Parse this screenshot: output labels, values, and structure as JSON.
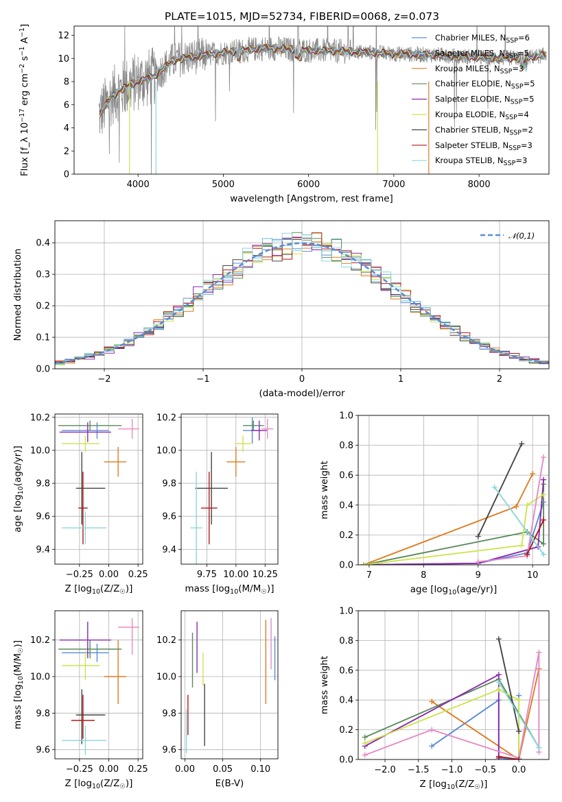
{
  "figure": {
    "title": "PLATE=1015, MJD=52734, FIBERID=0068, z=0.073"
  },
  "chart_data": [
    {
      "id": "spectrum",
      "type": "line",
      "xlabel": "wavelength [Angstrom, rest frame]",
      "ylabel": "Flux [f_λ 10^-17 erg cm^-2 s^-1 A^-1]",
      "xlim": [
        3250,
        8820
      ],
      "ylim": [
        0,
        12.8
      ],
      "xticks": [
        4000,
        5000,
        6000,
        7000,
        8000
      ],
      "yticks": [
        0,
        2,
        4,
        6,
        8,
        10,
        12
      ],
      "grid": false,
      "legend_position": "right",
      "series": [
        {
          "name": "Chabrier MILES, N_SSP=6",
          "color": "#5b8bd6"
        },
        {
          "name": "Salpeter MILES, N_SSP=5",
          "color": "#6ab8cf"
        },
        {
          "name": "Kroupa MILES, N_SSP=3",
          "color": "#e07b20"
        },
        {
          "name": "Chabrier ELODIE, N_SSP=5",
          "color": "#5a8a5a"
        },
        {
          "name": "Salpeter ELODIE, N_SSP=5",
          "color": "#8b2ab0"
        },
        {
          "name": "Kroupa ELODIE, N_SSP=4",
          "color": "#cde34d"
        },
        {
          "name": "Chabrier STELIB, N_SSP=2",
          "color": "#444444"
        },
        {
          "name": "Salpeter STELIB, N_SSP=3",
          "color": "#b01818"
        },
        {
          "name": "Kroupa STELIB, N_SSP=3",
          "color": "#8ad6dc"
        }
      ],
      "continuum_points": [
        [
          3550,
          5.2
        ],
        [
          3700,
          6.8
        ],
        [
          3900,
          7.7
        ],
        [
          4000,
          8.0
        ],
        [
          4200,
          8.5
        ],
        [
          4400,
          9.8
        ],
        [
          4600,
          10.1
        ],
        [
          5000,
          10.5
        ],
        [
          5500,
          10.9
        ],
        [
          6000,
          10.7
        ],
        [
          6500,
          10.6
        ],
        [
          7000,
          10.4
        ],
        [
          7500,
          10.3
        ],
        [
          8000,
          10.1
        ],
        [
          8500,
          10.0
        ],
        [
          8780,
          10.3
        ]
      ]
    },
    {
      "id": "residual-histogram",
      "type": "histogram",
      "xlabel": "(data-model)/error",
      "ylabel": "Normed distribution",
      "xlim": [
        -2.5,
        2.5
      ],
      "ylim": [
        0,
        0.47
      ],
      "xticks": [
        -2,
        -1,
        0,
        1,
        2
      ],
      "yticks": [
        0.0,
        0.1,
        0.2,
        0.3,
        0.4
      ],
      "grid": true,
      "legend_position": "top-right",
      "reference_curve": {
        "name": "𝒩(0,1)",
        "mean": 0,
        "sigma": 1,
        "color": "#5b8bd6",
        "style": "dashed"
      }
    },
    {
      "id": "age-vs-Z",
      "type": "errorbar",
      "xlabel": "Z [log10(Z/Z☉)]",
      "ylabel": "age  [log10(age/yr)]",
      "xlim": [
        -0.46,
        0.29
      ],
      "ylim": [
        9.31,
        10.22
      ],
      "xticks": [
        -0.5,
        -0.25,
        0.0,
        0.25
      ],
      "yticks": [
        9.4,
        9.6,
        9.8,
        10.0,
        10.2
      ],
      "grid": true,
      "points": [
        {
          "color": "#5b8bd6",
          "x": -0.1,
          "y": 10.12,
          "xerr": [
            0.3,
            0.1
          ],
          "yerr": [
            0.05,
            0.05
          ]
        },
        {
          "color": "#e07b20",
          "x": 0.08,
          "y": 9.93,
          "xerr": [
            0.12,
            0.07
          ],
          "yerr": [
            0.09,
            0.09
          ]
        },
        {
          "color": "#5a8a5a",
          "x": -0.16,
          "y": 10.15,
          "xerr": [
            0.27,
            0.27
          ],
          "yerr": [
            0.03,
            0.03
          ]
        },
        {
          "color": "#8b2ab0",
          "x": -0.18,
          "y": 10.11,
          "xerr": [
            0.24,
            0.2
          ],
          "yerr": [
            0.06,
            0.06
          ]
        },
        {
          "color": "#cde34d",
          "x": -0.2,
          "y": 10.04,
          "xerr": [
            0.2,
            0.12
          ],
          "yerr": [
            0.05,
            0.05
          ]
        },
        {
          "color": "#e58ac2",
          "x": 0.2,
          "y": 10.13,
          "xerr": [
            0.12,
            0.06
          ],
          "yerr": [
            0.06,
            0.06
          ]
        },
        {
          "color": "#444444",
          "x": -0.23,
          "y": 9.77,
          "xerr": [
            0.05,
            0.2
          ],
          "yerr": [
            0.22,
            0.22
          ]
        },
        {
          "color": "#b01818",
          "x": -0.22,
          "y": 9.65,
          "xerr": [
            0.04,
            0.04
          ],
          "yerr": [
            0.22,
            0.22
          ]
        },
        {
          "color": "#8ad6dc",
          "x": -0.2,
          "y": 9.53,
          "xerr": [
            0.2,
            0.18
          ],
          "yerr": [
            0.1,
            0.1
          ]
        }
      ]
    },
    {
      "id": "age-vs-mass",
      "type": "errorbar",
      "xlabel": "mass [log10(M/M☉)]",
      "ylabel": "",
      "xlim": [
        9.53,
        10.36
      ],
      "ylim": [
        9.31,
        10.22
      ],
      "xticks": [
        9.75,
        10.0,
        10.25
      ],
      "yticks": [
        9.4,
        9.6,
        9.8,
        10.0,
        10.2
      ],
      "grid": true,
      "points": [
        {
          "color": "#5b8bd6",
          "x": 10.14,
          "y": 10.12,
          "xerr": [
            0.08,
            0.08
          ],
          "yerr": [
            0.08,
            0.08
          ]
        },
        {
          "color": "#e07b20",
          "x": 10.0,
          "y": 9.93,
          "xerr": [
            0.08,
            0.08
          ],
          "yerr": [
            0.09,
            0.09
          ]
        },
        {
          "color": "#5a8a5a",
          "x": 10.15,
          "y": 10.15,
          "xerr": [
            0.09,
            0.09
          ],
          "yerr": [
            0.03,
            0.03
          ]
        },
        {
          "color": "#8b2ab0",
          "x": 10.2,
          "y": 10.12,
          "xerr": [
            0.07,
            0.07
          ],
          "yerr": [
            0.06,
            0.06
          ]
        },
        {
          "color": "#cde34d",
          "x": 10.06,
          "y": 10.04,
          "xerr": [
            0.07,
            0.07
          ],
          "yerr": [
            0.05,
            0.05
          ]
        },
        {
          "color": "#e58ac2",
          "x": 10.27,
          "y": 10.13,
          "xerr": [
            0.05,
            0.05
          ],
          "yerr": [
            0.06,
            0.06
          ]
        },
        {
          "color": "#444444",
          "x": 9.79,
          "y": 9.77,
          "xerr": [
            0.14,
            0.14
          ],
          "yerr": [
            0.22,
            0.22
          ]
        },
        {
          "color": "#b01818",
          "x": 9.77,
          "y": 9.65,
          "xerr": [
            0.07,
            0.07
          ],
          "yerr": [
            0.22,
            0.22
          ]
        },
        {
          "color": "#8ad6dc",
          "x": 9.66,
          "y": 9.53,
          "xerr": [
            0.05,
            0.05
          ],
          "yerr": [
            0.34,
            0.34
          ]
        }
      ]
    },
    {
      "id": "weight-vs-age",
      "type": "line",
      "xlabel": "age  [log10(age/yr)]",
      "ylabel": "mass weight",
      "xlim": [
        6.8,
        10.3
      ],
      "ylim": [
        0.0,
        1.0
      ],
      "xticks": [
        7,
        8,
        9,
        10
      ],
      "yticks": [
        0.0,
        0.2,
        0.4,
        0.6,
        0.8,
        1.0
      ],
      "grid": true,
      "series": [
        {
          "color": "#5b8bd6",
          "x": [
            6.9,
            9.0,
            9.9,
            10.2
          ],
          "y": [
            0.0,
            0.01,
            0.08,
            0.42
          ]
        },
        {
          "color": "#e07b20",
          "x": [
            6.9,
            9.7,
            10.0
          ],
          "y": [
            0.0,
            0.39,
            0.61
          ]
        },
        {
          "color": "#5a8a5a",
          "x": [
            6.9,
            9.9,
            10.2,
            10.2
          ],
          "y": [
            0.0,
            0.22,
            0.14,
            0.54
          ]
        },
        {
          "color": "#8b2ab0",
          "x": [
            6.9,
            9.0,
            10.1,
            10.2
          ],
          "y": [
            0.0,
            0.01,
            0.12,
            0.57
          ]
        },
        {
          "color": "#cde34d",
          "x": [
            6.9,
            9.8,
            9.9,
            10.2
          ],
          "y": [
            0.0,
            0.13,
            0.4,
            0.47
          ]
        },
        {
          "color": "#e58ac2",
          "x": [
            9.0,
            9.9,
            10.2
          ],
          "y": [
            0.02,
            0.06,
            0.72
          ]
        },
        {
          "color": "#444444",
          "x": [
            9.0,
            9.8
          ],
          "y": [
            0.19,
            0.81
          ]
        },
        {
          "color": "#b01818",
          "x": [
            9.9,
            10.2
          ],
          "y": [
            0.07,
            0.3
          ]
        },
        {
          "color": "#8ad6dc",
          "x": [
            9.3,
            10.2
          ],
          "y": [
            0.52,
            0.07
          ]
        }
      ]
    },
    {
      "id": "mass-vs-Z",
      "type": "errorbar",
      "xlabel": "Z [log10(Z/Z☉)]",
      "ylabel": "mass [log10(M/M☉)]",
      "xlim": [
        -0.46,
        0.29
      ],
      "ylim": [
        9.55,
        10.36
      ],
      "xticks": [
        -0.5,
        -0.25,
        0.0,
        0.25
      ],
      "yticks": [
        9.6,
        9.8,
        10.0,
        10.2
      ],
      "grid": true,
      "points": [
        {
          "color": "#5b8bd6",
          "x": -0.1,
          "y": 10.13,
          "xerr": [
            0.3,
            0.1
          ],
          "yerr": [
            0.05,
            0.05
          ]
        },
        {
          "color": "#e07b20",
          "x": 0.08,
          "y": 10.0,
          "xerr": [
            0.12,
            0.07
          ],
          "yerr": [
            0.15,
            0.2
          ]
        },
        {
          "color": "#5a8a5a",
          "x": -0.16,
          "y": 10.15,
          "xerr": [
            0.27,
            0.27
          ],
          "yerr": [
            0.05,
            0.05
          ]
        },
        {
          "color": "#8b2ab0",
          "x": -0.18,
          "y": 10.2,
          "xerr": [
            0.24,
            0.2
          ],
          "yerr": [
            0.1,
            0.1
          ]
        },
        {
          "color": "#cde34d",
          "x": -0.2,
          "y": 10.06,
          "xerr": [
            0.2,
            0.12
          ],
          "yerr": [
            0.08,
            0.08
          ]
        },
        {
          "color": "#e58ac2",
          "x": 0.2,
          "y": 10.27,
          "xerr": [
            0.12,
            0.06
          ],
          "yerr": [
            0.15,
            0.05
          ]
        },
        {
          "color": "#444444",
          "x": -0.23,
          "y": 9.79,
          "xerr": [
            0.05,
            0.2
          ],
          "yerr": [
            0.16,
            0.14
          ]
        },
        {
          "color": "#b01818",
          "x": -0.22,
          "y": 9.76,
          "xerr": [
            0.1,
            0.1
          ],
          "yerr": [
            0.1,
            0.14
          ]
        },
        {
          "color": "#8ad6dc",
          "x": -0.2,
          "y": 9.65,
          "xerr": [
            0.2,
            0.18
          ],
          "yerr": [
            0.08,
            0.08
          ]
        }
      ]
    },
    {
      "id": "mass-vs-EBV",
      "type": "errorbar",
      "xlabel": "E(B-V)",
      "ylabel": "",
      "xlim": [
        -0.005,
        0.123
      ],
      "ylim": [
        9.55,
        10.36
      ],
      "xticks": [
        0.0,
        0.05,
        0.1
      ],
      "yticks": [
        9.6,
        9.8,
        10.0,
        10.2
      ],
      "grid": true,
      "points": [
        {
          "color": "#5b8bd6",
          "x": 0.119,
          "y": 10.1,
          "xerr": [
            0,
            0
          ],
          "yerr": [
            0.12,
            0.12
          ]
        },
        {
          "color": "#e07b20",
          "x": 0.107,
          "y": 10.08,
          "xerr": [
            0,
            0
          ],
          "yerr": [
            0.23,
            0.23
          ]
        },
        {
          "color": "#5a8a5a",
          "x": 0.01,
          "y": 10.09,
          "xerr": [
            0,
            0
          ],
          "yerr": [
            0.15,
            0.15
          ]
        },
        {
          "color": "#8b2ab0",
          "x": 0.016,
          "y": 10.16,
          "xerr": [
            0,
            0
          ],
          "yerr": [
            0.14,
            0.14
          ]
        },
        {
          "color": "#cde34d",
          "x": 0.024,
          "y": 10.04,
          "xerr": [
            0,
            0
          ],
          "yerr": [
            0.09,
            0.09
          ]
        },
        {
          "color": "#e58ac2",
          "x": 0.114,
          "y": 10.18,
          "xerr": [
            0,
            0
          ],
          "yerr": [
            0.14,
            0.14
          ]
        },
        {
          "color": "#444444",
          "x": 0.026,
          "y": 9.79,
          "xerr": [
            0,
            0
          ],
          "yerr": [
            0.17,
            0.17
          ]
        },
        {
          "color": "#b01818",
          "x": 0.004,
          "y": 9.79,
          "xerr": [
            0,
            0
          ],
          "yerr": [
            0.11,
            0.11
          ]
        },
        {
          "color": "#8ad6dc",
          "x": 0.002,
          "y": 9.7,
          "xerr": [
            0,
            0
          ],
          "yerr": [
            0.12,
            0.12
          ]
        }
      ]
    },
    {
      "id": "weight-vs-Z",
      "type": "line",
      "xlabel": "Z [log10(Z/Z☉)]",
      "ylabel": "mass weight",
      "xlim": [
        -2.4,
        0.45
      ],
      "ylim": [
        0.0,
        1.0
      ],
      "xticks": [
        -2.0,
        -1.5,
        -1.0,
        -0.5,
        0.0
      ],
      "yticks": [
        0.0,
        0.2,
        0.4,
        0.6,
        0.8,
        1.0
      ],
      "grid": true,
      "series": [
        {
          "color": "#5b8bd6",
          "x": [
            -1.3,
            -0.3,
            -0.3,
            0.0,
            0.0
          ],
          "y": [
            0.09,
            0.4,
            0.01,
            0.0,
            0.43
          ]
        },
        {
          "color": "#e07b20",
          "x": [
            -1.3,
            0.0,
            0.3
          ],
          "y": [
            0.39,
            0.0,
            0.61
          ]
        },
        {
          "color": "#5a8a5a",
          "x": [
            -2.3,
            -0.3,
            0.3
          ],
          "y": [
            0.15,
            0.54,
            0.08
          ]
        },
        {
          "color": "#8b2ab0",
          "x": [
            -2.3,
            -0.3,
            -0.3
          ],
          "y": [
            0.09,
            0.57,
            0.01
          ]
        },
        {
          "color": "#cde34d",
          "x": [
            -2.3,
            -0.3,
            0.0,
            0.0
          ],
          "y": [
            0.11,
            0.47,
            0.4,
            0.0
          ]
        },
        {
          "color": "#e58ac2",
          "x": [
            -2.3,
            -1.3,
            0.0,
            0.3,
            0.3
          ],
          "y": [
            0.03,
            0.2,
            0.01,
            0.72,
            0.05
          ]
        },
        {
          "color": "#444444",
          "x": [
            -0.3,
            0.0
          ],
          "y": [
            0.81,
            0.19
          ]
        },
        {
          "color": "#b01818",
          "x": [
            -0.3,
            0.0
          ],
          "y": [
            0.02,
            0.0
          ]
        },
        {
          "color": "#8ad6dc",
          "x": [
            -0.3,
            0.3
          ],
          "y": [
            0.52,
            0.08
          ]
        }
      ]
    }
  ]
}
